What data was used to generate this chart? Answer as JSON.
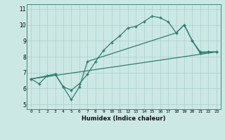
{
  "xlabel": "Humidex (Indice chaleur)",
  "bg_color": "#cce8e5",
  "grid_color": "#aacfcc",
  "line_color": "#2e7d6e",
  "xlim": [
    -0.5,
    23.5
  ],
  "ylim": [
    4.7,
    11.3
  ],
  "xticks": [
    0,
    1,
    2,
    3,
    4,
    5,
    6,
    7,
    8,
    9,
    10,
    11,
    12,
    13,
    14,
    15,
    16,
    17,
    18,
    19,
    20,
    21,
    22,
    23
  ],
  "yticks": [
    5,
    6,
    7,
    8,
    9,
    10,
    11
  ],
  "line1_x": [
    0,
    1,
    2,
    3,
    4,
    5,
    6,
    7,
    8,
    9,
    10,
    11,
    12,
    13,
    14,
    15,
    16,
    17,
    18,
    19,
    20,
    21,
    22,
    23
  ],
  "line1_y": [
    6.6,
    6.3,
    6.8,
    6.9,
    6.1,
    5.9,
    6.3,
    6.9,
    7.7,
    8.4,
    8.9,
    9.3,
    9.8,
    9.9,
    10.2,
    10.55,
    10.45,
    10.2,
    9.5,
    10.0,
    9.0,
    8.2,
    8.3,
    8.3
  ],
  "line2_x": [
    0,
    3,
    4,
    5,
    6,
    7,
    18,
    19,
    20,
    21,
    22,
    23
  ],
  "line2_y": [
    6.6,
    6.9,
    6.1,
    5.3,
    6.1,
    7.7,
    9.5,
    10.0,
    9.0,
    8.3,
    8.3,
    8.3
  ],
  "line3_x": [
    0,
    23
  ],
  "line3_y": [
    6.6,
    8.3
  ]
}
